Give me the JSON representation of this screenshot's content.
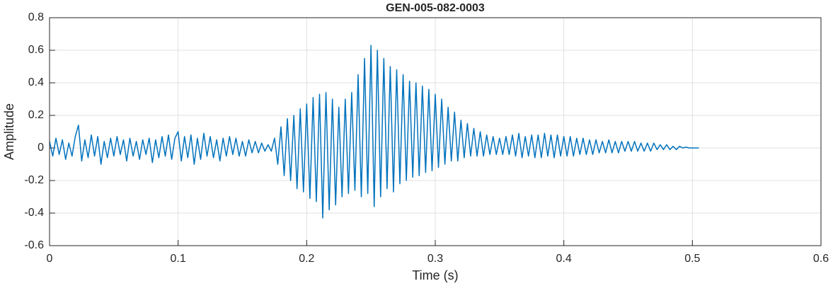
{
  "chart_data": {
    "type": "line",
    "title": "GEN-005-082-0003",
    "x_label": "Time (s)",
    "y_label": "Amplitude",
    "color": "#0072bd",
    "grid": true,
    "xlim": [
      0,
      0.6
    ],
    "xticks": [
      0,
      0.1,
      0.2,
      0.3,
      0.4,
      0.5,
      0.6
    ],
    "ylim": [
      -0.6,
      0.8
    ],
    "yticks": [
      -0.6,
      -0.4,
      -0.2,
      0,
      0.2,
      0.4,
      0.6,
      0.8
    ],
    "x": [
      0,
      0.0025,
      0.005,
      0.0075,
      0.01,
      0.0125,
      0.015,
      0.0175,
      0.02,
      0.0225,
      0.025,
      0.0275,
      0.03,
      0.0325,
      0.035,
      0.0375,
      0.04,
      0.0425,
      0.045,
      0.0475,
      0.05,
      0.0525,
      0.055,
      0.0575,
      0.06,
      0.0625,
      0.065,
      0.0675,
      0.07,
      0.0725,
      0.075,
      0.0775,
      0.08,
      0.0825,
      0.085,
      0.0875,
      0.09,
      0.0925,
      0.095,
      0.0975,
      0.1,
      0.1025,
      0.105,
      0.1075,
      0.11,
      0.1125,
      0.115,
      0.1175,
      0.12,
      0.1225,
      0.125,
      0.1275,
      0.13,
      0.1325,
      0.135,
      0.1375,
      0.14,
      0.1425,
      0.145,
      0.1475,
      0.15,
      0.1525,
      0.155,
      0.1575,
      0.16,
      0.1625,
      0.165,
      0.1675,
      0.17,
      0.1725,
      0.175,
      0.1775,
      0.18,
      0.1825,
      0.185,
      0.1875,
      0.19,
      0.1925,
      0.195,
      0.1975,
      0.2,
      0.2025,
      0.205,
      0.2075,
      0.21,
      0.2125,
      0.215,
      0.2175,
      0.22,
      0.2225,
      0.225,
      0.2275,
      0.23,
      0.2325,
      0.235,
      0.2375,
      0.24,
      0.2425,
      0.245,
      0.2475,
      0.25,
      0.2525,
      0.255,
      0.2575,
      0.26,
      0.2625,
      0.265,
      0.2675,
      0.27,
      0.2725,
      0.275,
      0.2775,
      0.28,
      0.2825,
      0.285,
      0.2875,
      0.29,
      0.2925,
      0.295,
      0.2975,
      0.3,
      0.3025,
      0.305,
      0.3075,
      0.31,
      0.3125,
      0.315,
      0.3175,
      0.32,
      0.3225,
      0.325,
      0.3275,
      0.33,
      0.3325,
      0.335,
      0.3375,
      0.34,
      0.3425,
      0.345,
      0.3475,
      0.35,
      0.3525,
      0.355,
      0.3575,
      0.36,
      0.3625,
      0.365,
      0.3675,
      0.37,
      0.3725,
      0.375,
      0.3775,
      0.38,
      0.3825,
      0.385,
      0.3875,
      0.39,
      0.3925,
      0.395,
      0.3975,
      0.4,
      0.4025,
      0.405,
      0.4075,
      0.41,
      0.4125,
      0.415,
      0.4175,
      0.42,
      0.4225,
      0.425,
      0.4275,
      0.43,
      0.4325,
      0.435,
      0.4375,
      0.44,
      0.4425,
      0.445,
      0.4475,
      0.45,
      0.4525,
      0.455,
      0.4575,
      0.46,
      0.4625,
      0.465,
      0.4675,
      0.47,
      0.4725,
      0.475,
      0.4775,
      0.48,
      0.4825,
      0.485,
      0.4875,
      0.49,
      0.4925,
      0.495,
      0.4975,
      0.5,
      0.505
    ],
    "values": [
      0.04,
      -0.05,
      0.06,
      -0.04,
      0.05,
      -0.07,
      0.03,
      -0.05,
      0.07,
      0.14,
      -0.08,
      0.05,
      -0.06,
      0.08,
      -0.05,
      0.07,
      -0.1,
      0.04,
      -0.06,
      0.06,
      -0.05,
      0.07,
      -0.04,
      0.05,
      -0.08,
      0.06,
      -0.05,
      0.04,
      -0.07,
      0.05,
      -0.04,
      0.06,
      -0.09,
      0.05,
      -0.06,
      0.07,
      -0.05,
      0.08,
      -0.07,
      0.06,
      0.1,
      -0.08,
      0.07,
      -0.06,
      0.08,
      -0.1,
      0.06,
      -0.07,
      0.09,
      -0.05,
      0.07,
      -0.06,
      0.05,
      -0.08,
      0.06,
      -0.05,
      0.07,
      -0.04,
      0.06,
      -0.05,
      0.04,
      -0.05,
      0.05,
      -0.03,
      0.04,
      -0.03,
      0.03,
      -0.02,
      0.02,
      -0.02,
      0.06,
      -0.1,
      0.13,
      -0.17,
      0.18,
      -0.2,
      0.2,
      -0.25,
      0.24,
      -0.27,
      0.27,
      -0.31,
      0.31,
      -0.33,
      0.33,
      -0.43,
      0.34,
      -0.38,
      0.3,
      -0.35,
      0.25,
      -0.3,
      0.3,
      -0.28,
      0.34,
      -0.26,
      0.45,
      -0.3,
      0.55,
      -0.28,
      0.63,
      -0.36,
      0.6,
      -0.3,
      0.55,
      -0.25,
      0.5,
      -0.27,
      0.48,
      -0.22,
      0.45,
      -0.2,
      0.41,
      -0.18,
      0.4,
      -0.17,
      0.38,
      -0.15,
      0.36,
      -0.14,
      0.33,
      -0.12,
      0.3,
      -0.1,
      0.25,
      -0.08,
      0.22,
      -0.08,
      0.17,
      -0.06,
      0.15,
      -0.05,
      0.12,
      -0.05,
      0.1,
      -0.05,
      0.08,
      -0.04,
      0.07,
      -0.04,
      0.06,
      -0.04,
      0.07,
      -0.04,
      0.08,
      -0.05,
      0.09,
      -0.06,
      0.07,
      -0.05,
      0.08,
      -0.06,
      0.08,
      -0.06,
      0.09,
      -0.05,
      0.08,
      -0.06,
      0.08,
      -0.05,
      0.07,
      -0.05,
      0.07,
      -0.05,
      0.06,
      -0.04,
      0.06,
      -0.04,
      0.05,
      -0.04,
      0.05,
      -0.03,
      0.04,
      -0.03,
      0.05,
      -0.03,
      0.04,
      -0.03,
      0.04,
      -0.02,
      0.04,
      -0.02,
      0.04,
      -0.02,
      0.03,
      -0.02,
      0.03,
      -0.02,
      0.03,
      -0.01,
      0.02,
      -0.01,
      0.02,
      -0.01,
      0.01,
      -0.01,
      0.01,
      0,
      0.005,
      0,
      0,
      0
    ]
  }
}
